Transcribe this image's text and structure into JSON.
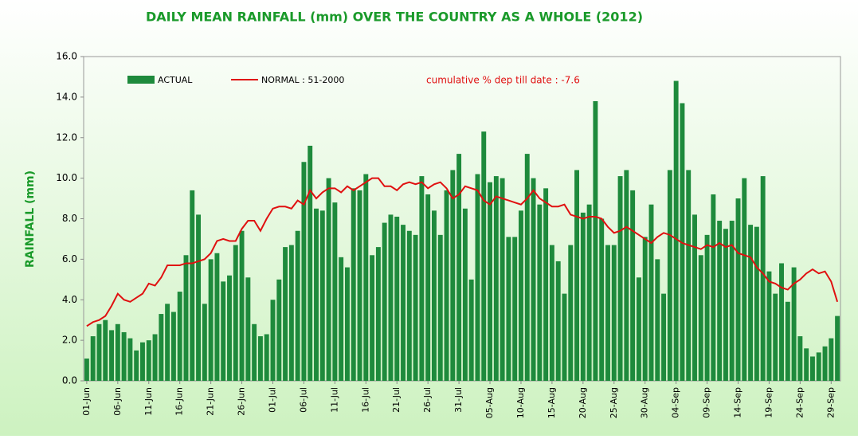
{
  "chart_data": {
    "type": "bar",
    "title": "DAILY MEAN RAINFALL (mm) OVER THE COUNTRY AS A WHOLE  (2012)",
    "y_label": "RAINFALL (mm)",
    "annotation": "cumulative % dep till date : -7.6",
    "categories": [
      "01-Jun",
      null,
      null,
      null,
      null,
      "06-Jun",
      null,
      null,
      null,
      null,
      "11-Jun",
      null,
      null,
      null,
      null,
      "16-Jun",
      null,
      null,
      null,
      null,
      "21-Jun",
      null,
      null,
      null,
      null,
      "26-Jun",
      null,
      null,
      null,
      null,
      "01-Jul",
      null,
      null,
      null,
      null,
      "06-Jul",
      null,
      null,
      null,
      null,
      "11-Jul",
      null,
      null,
      null,
      null,
      "16-Jul",
      null,
      null,
      null,
      null,
      "21-Jul",
      null,
      null,
      null,
      null,
      "26-Jul",
      null,
      null,
      null,
      null,
      "31-Jul",
      null,
      null,
      null,
      null,
      "05-Aug",
      null,
      null,
      null,
      null,
      "10-Aug",
      null,
      null,
      null,
      null,
      "15-Aug",
      null,
      null,
      null,
      null,
      "20-Aug",
      null,
      null,
      null,
      null,
      "25-Aug",
      null,
      null,
      null,
      null,
      "30-Aug",
      null,
      null,
      null,
      null,
      "04-Sep",
      null,
      null,
      null,
      null,
      "09-Sep",
      null,
      null,
      null,
      null,
      "14-Sep",
      null,
      null,
      null,
      null,
      "19-Sep",
      null,
      null,
      null,
      null,
      "24-Sep",
      null,
      null,
      null,
      null,
      "29-Sep",
      null
    ],
    "series": [
      {
        "name": "ACTUAL",
        "kind": "bar",
        "color": "#1e8a3c",
        "values": [
          1.1,
          2.2,
          2.8,
          3.0,
          2.5,
          2.8,
          2.4,
          2.1,
          1.5,
          1.9,
          2.0,
          2.3,
          3.3,
          3.8,
          3.4,
          4.4,
          6.2,
          9.4,
          8.2,
          3.8,
          6.0,
          6.3,
          4.9,
          5.2,
          6.7,
          7.4,
          5.1,
          2.8,
          2.2,
          2.3,
          4.0,
          5.0,
          6.6,
          6.7,
          7.4,
          10.8,
          11.6,
          8.5,
          8.4,
          10.0,
          8.8,
          6.1,
          5.6,
          9.5,
          9.4,
          10.2,
          6.2,
          6.6,
          7.8,
          8.2,
          8.1,
          7.7,
          7.4,
          7.2,
          10.1,
          9.2,
          8.4,
          7.2,
          9.4,
          10.4,
          11.2,
          8.5,
          5.0,
          10.2,
          12.3,
          9.8,
          10.1,
          10.0,
          7.1,
          7.1,
          8.4,
          11.2,
          10.0,
          8.7,
          9.5,
          6.7,
          5.9,
          4.3,
          6.7,
          10.4,
          8.3,
          8.7,
          13.8,
          8.0,
          6.7,
          6.7,
          10.1,
          10.4,
          9.4,
          5.1,
          7.1,
          8.7,
          6.0,
          4.3,
          10.4,
          14.8,
          13.7,
          10.4,
          8.2,
          6.2,
          7.2,
          9.2,
          7.9,
          7.5,
          7.9,
          9.0,
          10.0,
          7.7,
          7.6,
          10.1,
          5.4,
          4.3,
          5.8,
          3.9,
          5.6,
          2.2,
          1.6,
          1.2,
          1.4,
          1.7,
          2.1,
          3.2
        ]
      },
      {
        "name": "NORMAL : 51-2000",
        "kind": "line",
        "color": "#e01010",
        "values": [
          2.7,
          2.9,
          3.0,
          3.2,
          3.7,
          4.3,
          4.0,
          3.9,
          4.1,
          4.3,
          4.8,
          4.7,
          5.1,
          5.7,
          5.7,
          5.7,
          5.8,
          5.8,
          5.9,
          6.0,
          6.3,
          6.9,
          7.0,
          6.9,
          6.9,
          7.5,
          7.9,
          7.9,
          7.4,
          8.0,
          8.5,
          8.6,
          8.6,
          8.5,
          8.9,
          8.7,
          9.4,
          9.0,
          9.3,
          9.5,
          9.5,
          9.3,
          9.6,
          9.4,
          9.6,
          9.8,
          10.0,
          10.0,
          9.6,
          9.6,
          9.4,
          9.7,
          9.8,
          9.7,
          9.8,
          9.5,
          9.7,
          9.8,
          9.5,
          9.0,
          9.2,
          9.6,
          9.5,
          9.4,
          8.9,
          8.7,
          9.1,
          9.0,
          8.9,
          8.8,
          8.7,
          9.0,
          9.4,
          9.0,
          8.8,
          8.6,
          8.6,
          8.7,
          8.2,
          8.1,
          8.0,
          8.1,
          8.1,
          8.0,
          7.6,
          7.3,
          7.4,
          7.6,
          7.4,
          7.2,
          7.0,
          6.8,
          7.1,
          7.3,
          7.2,
          7.0,
          6.8,
          6.7,
          6.6,
          6.5,
          6.7,
          6.6,
          6.8,
          6.6,
          6.7,
          6.3,
          6.2,
          6.1,
          5.6,
          5.3,
          4.9,
          4.8,
          4.6,
          4.5,
          4.8,
          5.0,
          5.3,
          5.5,
          5.3,
          5.4,
          4.9,
          3.9
        ]
      }
    ],
    "ylim": [
      0,
      16
    ],
    "yticks": [
      {
        "value": 0,
        "label": "0.0"
      },
      {
        "value": 2,
        "label": "2.0"
      },
      {
        "value": 4,
        "label": "4.0"
      },
      {
        "value": 6,
        "label": "6.0"
      },
      {
        "value": 8,
        "label": "8.0"
      },
      {
        "value": 10,
        "label": "10.0"
      },
      {
        "value": 12,
        "label": "12.0"
      },
      {
        "value": 14,
        "label": "14.0"
      },
      {
        "value": 16,
        "label": "16.0"
      }
    ]
  }
}
